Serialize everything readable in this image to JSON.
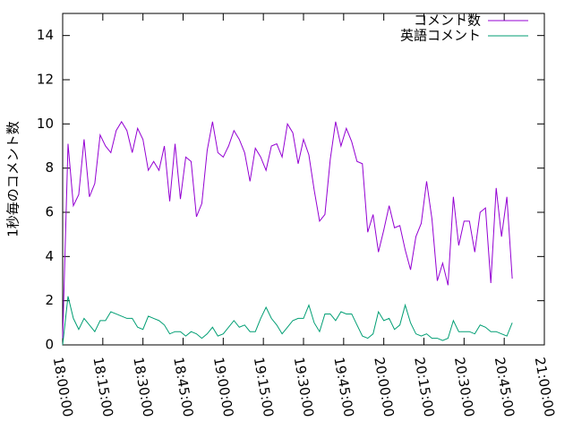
{
  "chart_data": {
    "type": "line",
    "ylabel": "1秒毎のコメント数",
    "x": [
      "18:00:00",
      "18:02:00",
      "18:04:00",
      "18:06:00",
      "18:08:00",
      "18:10:00",
      "18:12:00",
      "18:14:00",
      "18:16:00",
      "18:18:00",
      "18:20:00",
      "18:22:00",
      "18:24:00",
      "18:26:00",
      "18:28:00",
      "18:30:00",
      "18:32:00",
      "18:34:00",
      "18:36:00",
      "18:38:00",
      "18:40:00",
      "18:42:00",
      "18:44:00",
      "18:46:00",
      "18:48:00",
      "18:50:00",
      "18:52:00",
      "18:54:00",
      "18:56:00",
      "18:58:00",
      "19:00:00",
      "19:02:00",
      "19:04:00",
      "19:06:00",
      "19:08:00",
      "19:10:00",
      "19:12:00",
      "19:14:00",
      "19:16:00",
      "19:18:00",
      "19:20:00",
      "19:22:00",
      "19:24:00",
      "19:26:00",
      "19:28:00",
      "19:30:00",
      "19:32:00",
      "19:34:00",
      "19:36:00",
      "19:38:00",
      "19:40:00",
      "19:42:00",
      "19:44:00",
      "19:46:00",
      "19:48:00",
      "19:50:00",
      "19:52:00",
      "19:54:00",
      "19:56:00",
      "19:58:00",
      "20:00:00",
      "20:02:00",
      "20:04:00",
      "20:06:00",
      "20:08:00",
      "20:10:00",
      "20:12:00",
      "20:14:00",
      "20:16:00",
      "20:18:00",
      "20:20:00",
      "20:22:00",
      "20:24:00",
      "20:26:00",
      "20:28:00",
      "20:30:00",
      "20:32:00",
      "20:34:00",
      "20:36:00",
      "20:38:00",
      "20:40:00",
      "20:42:00",
      "20:44:00",
      "20:46:00",
      "20:48:00"
    ],
    "series": [
      {
        "name": "コメント数",
        "color": "#9400d3",
        "values": [
          0.3,
          9.1,
          6.3,
          6.8,
          9.3,
          6.7,
          7.3,
          9.5,
          9.0,
          8.7,
          9.7,
          10.1,
          9.7,
          8.7,
          9.8,
          9.3,
          7.9,
          8.3,
          7.9,
          9.0,
          6.5,
          9.1,
          6.6,
          8.5,
          8.3,
          5.8,
          6.4,
          8.8,
          10.1,
          8.7,
          8.5,
          9.0,
          9.7,
          9.3,
          8.7,
          7.4,
          8.9,
          8.5,
          7.9,
          9.0,
          9.1,
          8.5,
          10.0,
          9.6,
          8.2,
          9.3,
          8.6,
          7.0,
          5.6,
          5.9,
          8.4,
          10.1,
          9.0,
          9.8,
          9.2,
          8.3,
          8.2,
          5.1,
          5.9,
          4.2,
          5.2,
          6.3,
          5.3,
          5.4,
          4.3,
          3.4,
          4.9,
          5.5,
          7.4,
          5.7,
          2.9,
          3.7,
          2.7,
          6.7,
          4.5,
          5.6,
          5.6,
          4.2,
          6.0,
          6.2,
          2.8,
          7.1,
          4.9,
          6.7,
          3.0
        ]
      },
      {
        "name": "英語コメント",
        "color": "#009e73",
        "values": [
          0.0,
          2.2,
          1.2,
          0.7,
          1.2,
          0.9,
          0.6,
          1.1,
          1.1,
          1.5,
          1.4,
          1.3,
          1.2,
          1.2,
          0.8,
          0.7,
          1.3,
          1.2,
          1.1,
          0.9,
          0.5,
          0.6,
          0.6,
          0.4,
          0.6,
          0.5,
          0.3,
          0.5,
          0.8,
          0.4,
          0.5,
          0.8,
          1.1,
          0.8,
          0.9,
          0.6,
          0.6,
          1.2,
          1.7,
          1.2,
          0.9,
          0.5,
          0.8,
          1.1,
          1.2,
          1.2,
          1.8,
          1.0,
          0.6,
          1.4,
          1.4,
          1.1,
          1.5,
          1.4,
          1.4,
          0.9,
          0.4,
          0.3,
          0.5,
          1.5,
          1.1,
          1.2,
          0.7,
          0.9,
          1.8,
          1.0,
          0.5,
          0.4,
          0.5,
          0.3,
          0.3,
          0.2,
          0.3,
          1.1,
          0.6,
          0.6,
          0.6,
          0.5,
          0.9,
          0.8,
          0.6,
          0.6,
          0.5,
          0.4,
          1.0
        ]
      }
    ],
    "xlim": [
      "18:00:00",
      "21:00:00"
    ],
    "xticks": [
      "18:00:00",
      "18:15:00",
      "18:30:00",
      "18:45:00",
      "19:00:00",
      "19:15:00",
      "19:30:00",
      "19:45:00",
      "20:00:00",
      "20:15:00",
      "20:30:00",
      "20:45:00",
      "21:00:00"
    ],
    "ylim": [
      0,
      15
    ],
    "yticks": [
      0,
      2,
      4,
      6,
      8,
      10,
      12,
      14
    ],
    "legend": "top right"
  }
}
